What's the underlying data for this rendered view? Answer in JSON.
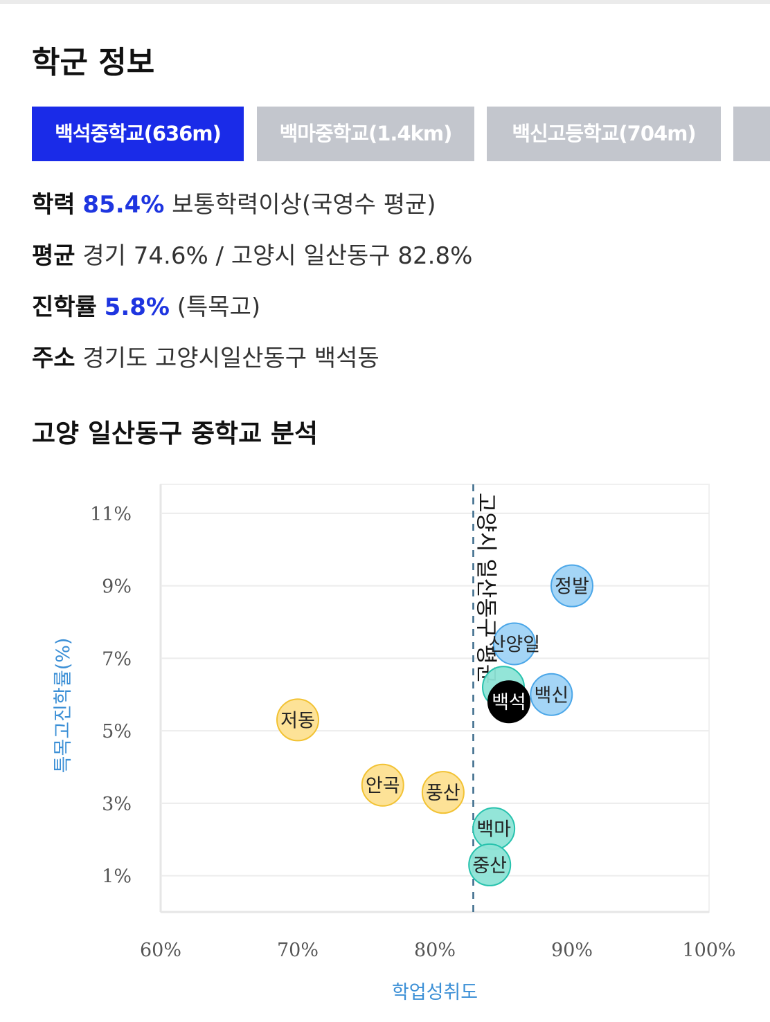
{
  "page_title": "학군 정보",
  "tabs": [
    {
      "name": "백석중학교",
      "distance": "(636m)",
      "active": true
    },
    {
      "name": "백마중학교",
      "distance": "(1.4km)",
      "active": false
    },
    {
      "name": "백신고등학교",
      "distance": "(704m)",
      "active": false
    }
  ],
  "info": {
    "achievement": {
      "label": "학력",
      "value": "85.4%",
      "text": "보통학력이상(국영수 평균)"
    },
    "average": {
      "label": "평균",
      "text": "경기 74.6% / 고양시 일산동구 82.8%"
    },
    "admission": {
      "label": "진학률",
      "value": "5.8%",
      "text": "(특목고)"
    },
    "address": {
      "label": "주소",
      "text": "경기도 고양시일산동구 백석동"
    }
  },
  "analysis_title": "고양 일산동구 중학교 분석",
  "chart_data": {
    "type": "scatter",
    "xlabel": "학업성취도",
    "ylabel": "특목고진학률(%)",
    "xlim": [
      60,
      100
    ],
    "ylim": [
      0,
      11.8
    ],
    "xticks": [
      "60%",
      "70%",
      "80%",
      "90%",
      "100%"
    ],
    "xtick_values": [
      60,
      70,
      80,
      90,
      100
    ],
    "yticks": [
      "1%",
      "3%",
      "5%",
      "7%",
      "9%",
      "11%"
    ],
    "ytick_values": [
      1,
      3,
      5,
      7,
      9,
      11
    ],
    "grid": true,
    "reference_line": {
      "x": 82.8,
      "label": "고양시 일산동구 평균"
    },
    "colors": {
      "blue": "#9fd3f5",
      "teal": "#8de4d6",
      "yellow": "#fde091",
      "selected": "#000000"
    },
    "points": [
      {
        "label": "정발",
        "x": 90.0,
        "y": 9.0,
        "color": "blue"
      },
      {
        "label": "산양일",
        "x": 85.8,
        "y": 7.4,
        "color": "blue"
      },
      {
        "label": "백신",
        "x": 88.5,
        "y": 6.0,
        "color": "blue"
      },
      {
        "label": "",
        "x": 85.0,
        "y": 6.2,
        "color": "teal"
      },
      {
        "label": "백석",
        "x": 85.4,
        "y": 5.8,
        "color": "selected"
      },
      {
        "label": "저동",
        "x": 70.0,
        "y": 5.3,
        "color": "yellow"
      },
      {
        "label": "안곡",
        "x": 76.2,
        "y": 3.5,
        "color": "yellow"
      },
      {
        "label": "풍산",
        "x": 80.6,
        "y": 3.3,
        "color": "yellow"
      },
      {
        "label": "백마",
        "x": 84.3,
        "y": 2.3,
        "color": "teal"
      },
      {
        "label": "중산",
        "x": 84.0,
        "y": 1.3,
        "color": "teal"
      }
    ]
  }
}
